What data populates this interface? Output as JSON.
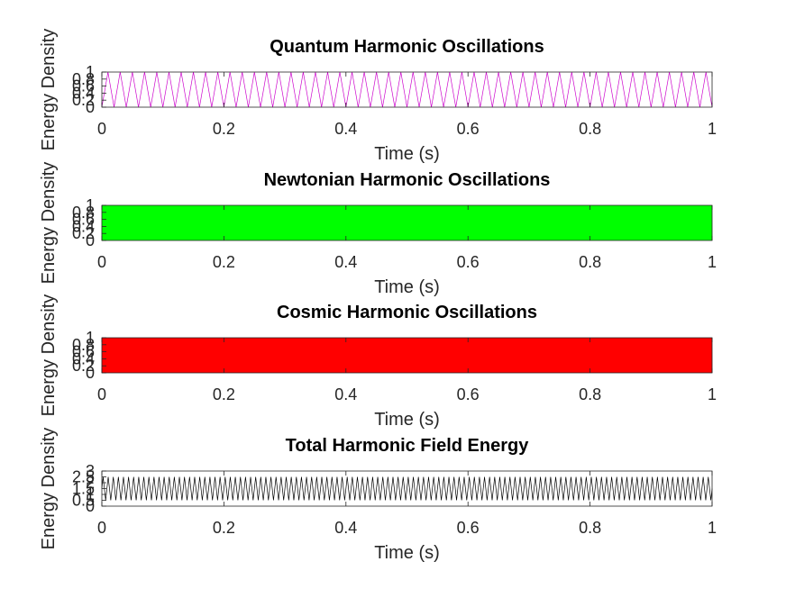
{
  "chart_data": [
    {
      "type": "line",
      "title": "Quantum Harmonic Oscillations",
      "xlabel": "Time (s)",
      "ylabel": "Energy Density",
      "xlim": [
        0,
        1
      ],
      "ylim": [
        0,
        1
      ],
      "xticks": [
        "0",
        "0.2",
        "0.4",
        "0.6",
        "0.8",
        "1"
      ],
      "yticks": [
        "0",
        "0.2",
        "0.4",
        "0.6",
        "0.8",
        "1"
      ],
      "series": [
        {
          "color": "#cc00cc",
          "min": 0,
          "max": 1,
          "frequency_hz": 50,
          "pattern": "sin^2"
        }
      ]
    },
    {
      "type": "line",
      "title": "Newtonian Harmonic Oscillations",
      "xlabel": "Time (s)",
      "ylabel": "Energy Density",
      "xlim": [
        0,
        1
      ],
      "ylim": [
        0,
        1
      ],
      "xticks": [
        "0",
        "0.2",
        "0.4",
        "0.6",
        "0.8",
        "1"
      ],
      "yticks": [
        "0",
        "0.2",
        "0.4",
        "0.6",
        "0.8",
        "1"
      ],
      "series": [
        {
          "color": "#00ff00",
          "min": 0,
          "max": 1,
          "frequency_hz": 1000,
          "pattern": "sin^2"
        }
      ]
    },
    {
      "type": "line",
      "title": "Cosmic Harmonic Oscillations",
      "xlabel": "Time (s)",
      "ylabel": "Energy Density",
      "xlim": [
        0,
        1
      ],
      "ylim": [
        0,
        1
      ],
      "xticks": [
        "0",
        "0.2",
        "0.4",
        "0.6",
        "0.8",
        "1"
      ],
      "yticks": [
        "0",
        "0.2",
        "0.4",
        "0.6",
        "0.8",
        "1"
      ],
      "series": [
        {
          "color": "#ff0000",
          "min": 0,
          "max": 1,
          "frequency_hz": 1000,
          "pattern": "sin^2"
        }
      ]
    },
    {
      "type": "line",
      "title": "Total Harmonic Field Energy",
      "xlabel": "Time (s)",
      "ylabel": "Energy Density",
      "xlim": [
        0,
        1
      ],
      "ylim": [
        0,
        3
      ],
      "xticks": [
        "0",
        "0.2",
        "0.4",
        "0.6",
        "0.8",
        "1"
      ],
      "yticks": [
        "0",
        "0.5",
        "1",
        "1.5",
        "2",
        "2.5",
        "3"
      ],
      "series": [
        {
          "color": "#000000",
          "min": 0.5,
          "max": 2.5,
          "frequency_hz": 120,
          "pattern": "sum"
        }
      ]
    }
  ]
}
